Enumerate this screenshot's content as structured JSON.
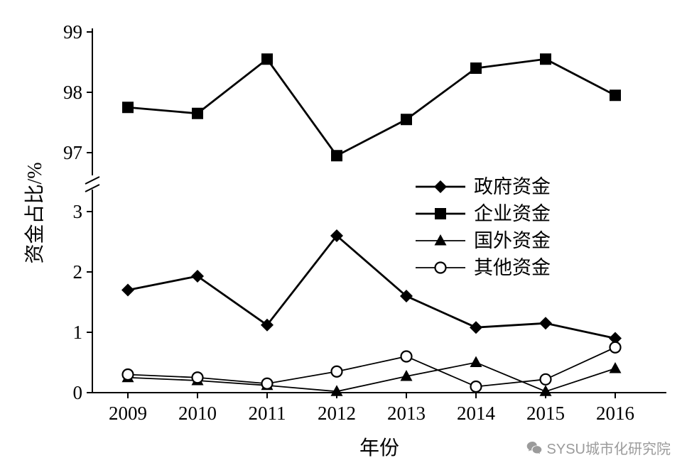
{
  "chart_data": {
    "type": "line",
    "x": [
      2009,
      2010,
      2011,
      2012,
      2013,
      2014,
      2015,
      2016
    ],
    "xlabel": "年份",
    "ylabel": "资金占比/%",
    "axis_break": true,
    "top_panel": {
      "ticks": [
        97,
        98,
        99
      ],
      "min": 96.6,
      "max": 99.1
    },
    "bottom_panel": {
      "ticks": [
        0,
        1,
        2,
        3
      ],
      "min": 0,
      "max": 3.4
    },
    "series": [
      {
        "name": "政府资金",
        "marker": "diamond",
        "panel": "bottom",
        "line_width": 2.8,
        "values": [
          1.7,
          1.93,
          1.12,
          2.6,
          1.6,
          1.08,
          1.15,
          0.9
        ]
      },
      {
        "name": "企业资金",
        "marker": "square",
        "panel": "top",
        "line_width": 2.8,
        "values": [
          97.75,
          97.65,
          98.55,
          96.95,
          97.55,
          98.4,
          98.55,
          97.95
        ]
      },
      {
        "name": "国外资金",
        "marker": "triangle",
        "panel": "bottom",
        "line_width": 1.8,
        "values": [
          0.25,
          0.2,
          0.12,
          0.02,
          0.27,
          0.5,
          0.02,
          0.4
        ]
      },
      {
        "name": "其他资金",
        "marker": "circle-open",
        "panel": "bottom",
        "line_width": 1.8,
        "values": [
          0.3,
          0.25,
          0.15,
          0.35,
          0.6,
          0.1,
          0.22,
          0.75
        ]
      }
    ],
    "legend_position": "inside-right",
    "grid": false,
    "colors": {
      "line": "#000000",
      "background": "#ffffff"
    }
  },
  "watermark": {
    "icon": "wechat-icon",
    "text": "SYSU城市化研究院",
    "color": "#9b9b9b"
  }
}
